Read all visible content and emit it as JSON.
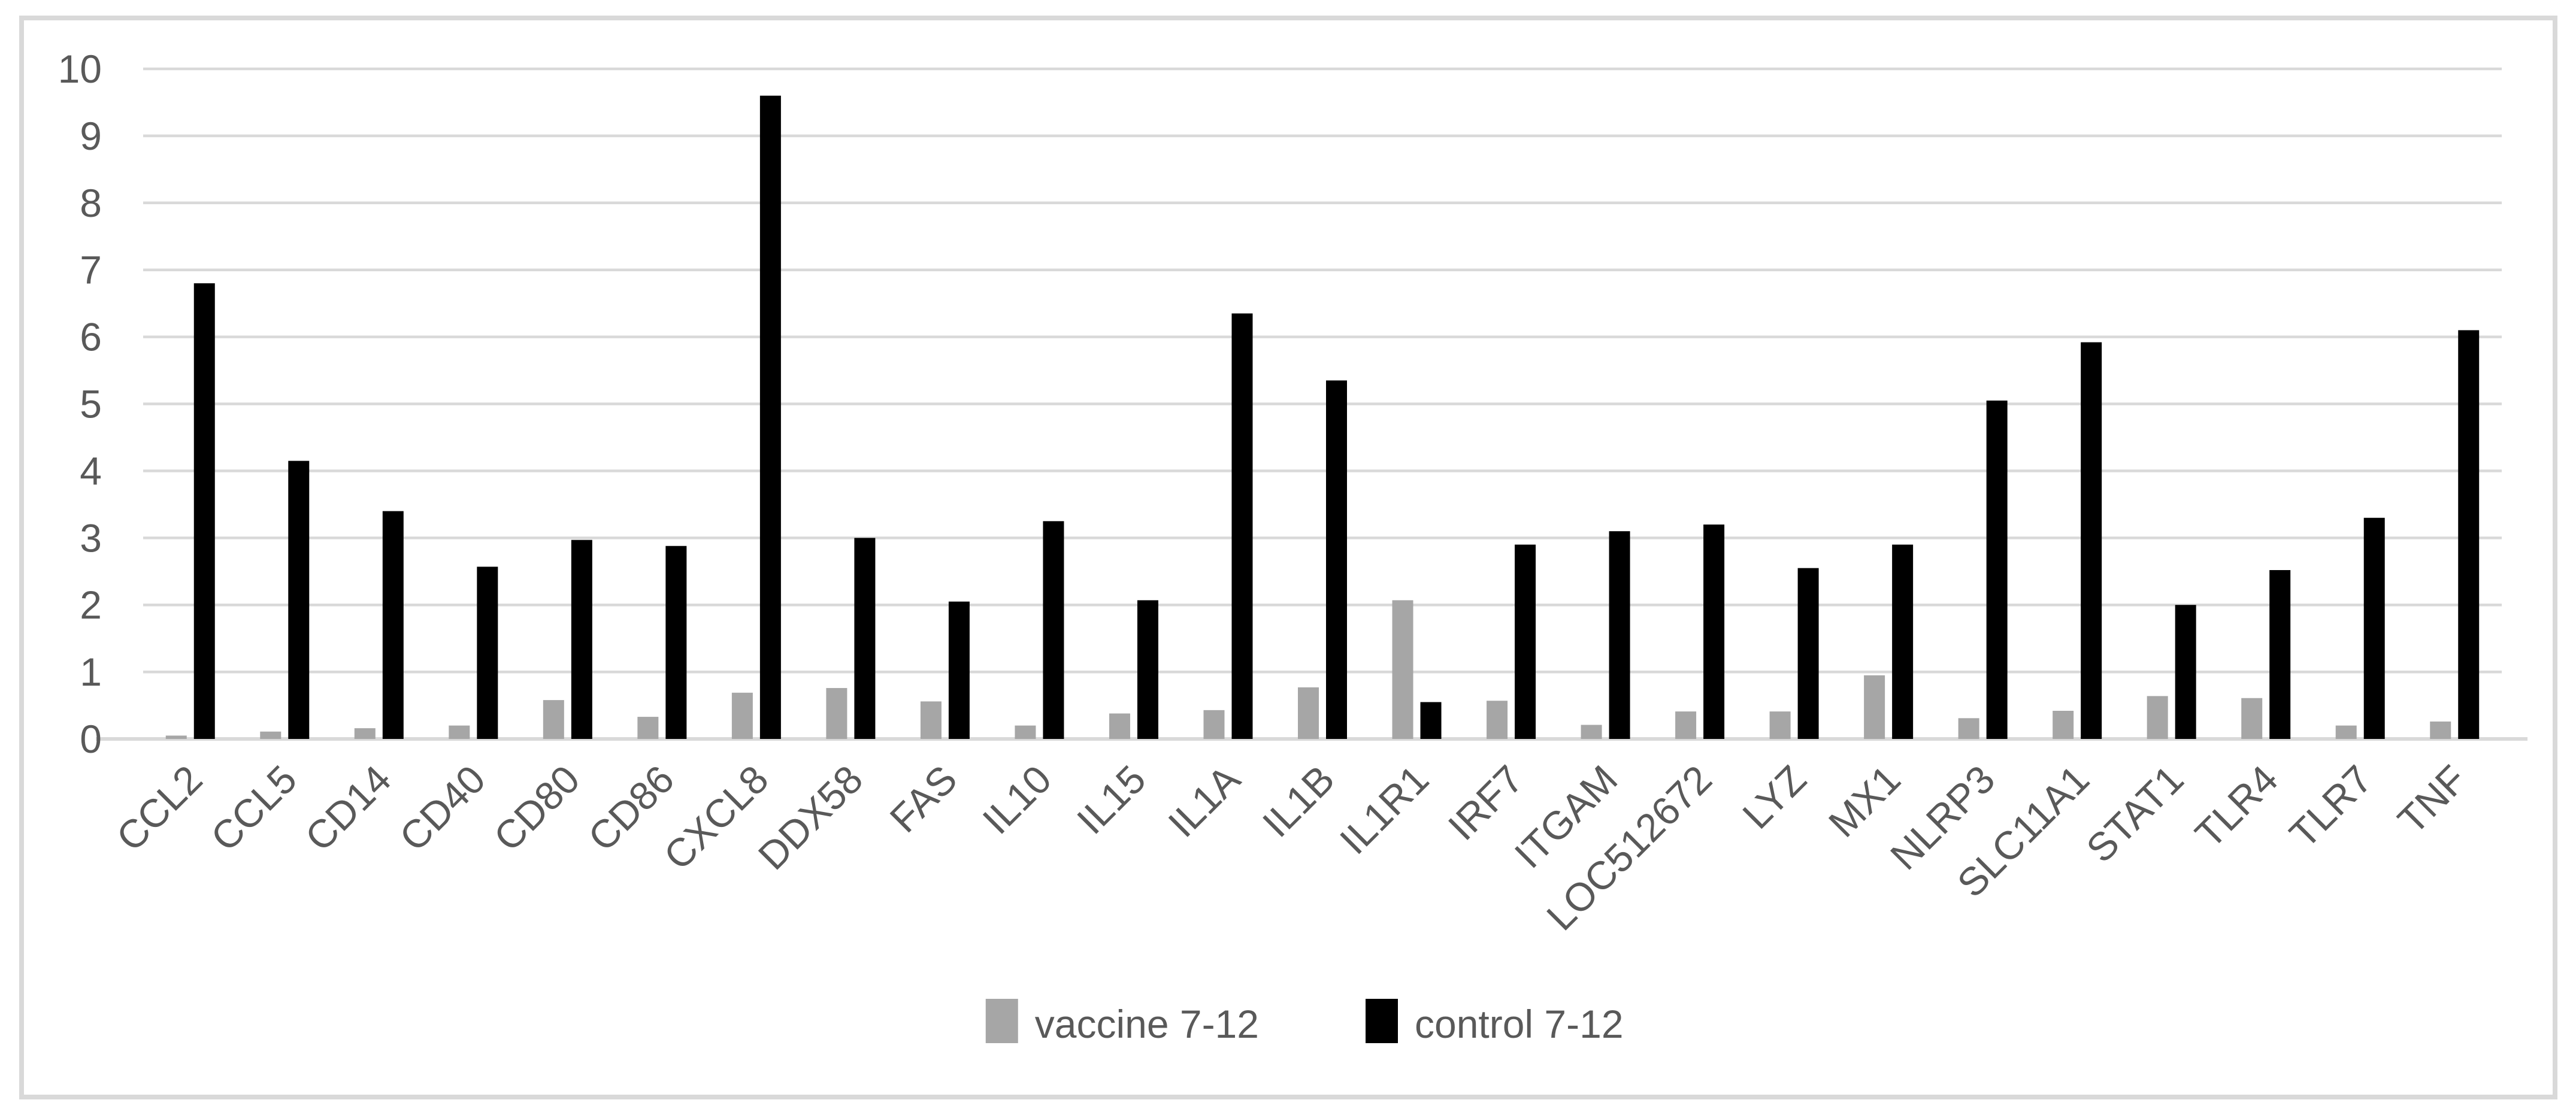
{
  "figure": {
    "kind": "excel-style clustered column chart",
    "title": ""
  },
  "colors": {
    "background": "#ffffff",
    "border": "#d9d9d9",
    "gridline": "#d9d9d9",
    "axis_line": "#d9d9d9",
    "axis_text": "#595959",
    "series_vaccine": "#a6a6a6",
    "series_control": "#000000"
  },
  "legend": {
    "position": "bottom",
    "items": [
      {
        "label": "vaccine 7-12",
        "color": "#a6a6a6"
      },
      {
        "label": "control 7-12",
        "color": "#000000"
      }
    ]
  },
  "y_axis": {
    "ticks": [
      0,
      1,
      2,
      3,
      4,
      5,
      6,
      7,
      8,
      9,
      10
    ]
  },
  "chart_data": {
    "type": "bar",
    "title": "",
    "xlabel": "",
    "ylabel": "",
    "ylim": [
      0,
      10
    ],
    "yticks": [
      0,
      1,
      2,
      3,
      4,
      5,
      6,
      7,
      8,
      9,
      10
    ],
    "grid": true,
    "legend_position": "bottom",
    "categories": [
      "CCL2",
      "CCL5",
      "CD14",
      "CD40",
      "CD80",
      "CD86",
      "CXCL8",
      "DDX58",
      "FAS",
      "IL10",
      "IL15",
      "IL1A",
      "IL1B",
      "IL1R1",
      "IRF7",
      "ITGAM",
      "LOC512672",
      "LYZ",
      "MX1",
      "NLRP3",
      "SLC11A1",
      "STAT1",
      "TLR4",
      "TLR7",
      "TNF"
    ],
    "series": [
      {
        "name": "vaccine 7-12",
        "color": "#a6a6a6",
        "values": [
          0.05,
          0.11,
          0.16,
          0.2,
          0.58,
          0.33,
          0.69,
          0.76,
          0.56,
          0.2,
          0.38,
          0.43,
          0.77,
          2.07,
          0.57,
          0.21,
          0.41,
          0.41,
          0.95,
          0.31,
          0.42,
          0.64,
          0.61,
          0.2,
          0.26
        ]
      },
      {
        "name": "control 7-12",
        "color": "#000000",
        "values": [
          6.8,
          4.15,
          3.4,
          2.57,
          2.97,
          2.88,
          9.6,
          3.0,
          2.05,
          3.25,
          2.07,
          6.35,
          5.35,
          0.55,
          2.9,
          3.1,
          3.2,
          2.55,
          2.9,
          5.05,
          5.92,
          2.0,
          2.52,
          3.3,
          6.1
        ]
      }
    ]
  }
}
